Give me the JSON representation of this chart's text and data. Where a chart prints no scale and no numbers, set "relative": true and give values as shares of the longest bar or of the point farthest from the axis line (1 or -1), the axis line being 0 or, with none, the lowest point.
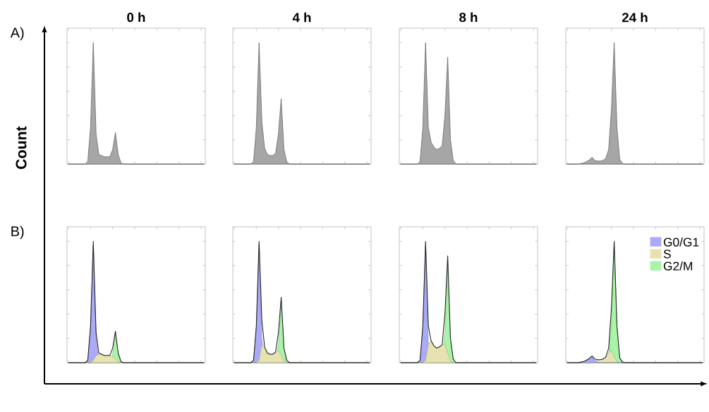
{
  "chart_data": [
    {
      "type": "area",
      "relative": true,
      "title": "0 h",
      "ylabel": "Count",
      "annotations": [
        "A)"
      ],
      "categories": [
        null,
        null,
        null,
        null,
        null,
        null,
        null,
        null,
        null,
        null,
        null,
        null,
        null,
        null,
        null,
        null,
        null,
        null,
        null,
        null,
        null,
        null,
        null,
        null,
        null,
        null,
        null,
        null,
        null,
        null,
        null,
        null,
        null,
        null,
        null,
        null,
        null,
        null,
        null,
        null,
        null,
        null,
        null,
        null,
        null,
        null,
        null,
        null,
        null,
        null
      ],
      "series": [
        {
          "color": "#a6a6a6",
          "values": [
            0,
            0,
            0,
            0,
            0,
            0,
            0,
            0.02,
            0.3,
            1,
            0.25,
            0.08,
            0.07,
            0.06,
            0.06,
            0.06,
            0.12,
            0.26,
            0.08,
            0.01,
            0,
            0,
            0,
            0,
            0,
            0,
            0,
            0,
            0,
            0,
            0,
            0,
            0,
            0,
            0,
            0,
            0,
            0,
            0,
            0,
            0,
            0,
            0,
            0,
            0,
            0,
            0,
            0,
            0,
            0
          ]
        }
      ]
    },
    {
      "type": "area",
      "relative": true,
      "title": "4 h",
      "categories": [
        null,
        null,
        null,
        null,
        null,
        null,
        null,
        null,
        null,
        null,
        null,
        null,
        null,
        null,
        null,
        null,
        null,
        null,
        null,
        null,
        null,
        null,
        null,
        null,
        null,
        null,
        null,
        null,
        null,
        null,
        null,
        null,
        null,
        null,
        null,
        null,
        null,
        null,
        null,
        null,
        null,
        null,
        null,
        null,
        null,
        null,
        null,
        null,
        null,
        null
      ],
      "series": [
        {
          "color": "#a6a6a6",
          "values": [
            0,
            0,
            0,
            0,
            0,
            0,
            0,
            0.02,
            0.3,
            1,
            0.35,
            0.13,
            0.08,
            0.07,
            0.07,
            0.09,
            0.25,
            0.54,
            0.12,
            0.02,
            0,
            0,
            0,
            0,
            0,
            0,
            0,
            0,
            0,
            0,
            0,
            0,
            0,
            0,
            0,
            0,
            0,
            0,
            0,
            0,
            0,
            0,
            0,
            0,
            0,
            0,
            0,
            0,
            0,
            0
          ]
        }
      ]
    },
    {
      "type": "area",
      "relative": true,
      "title": "8 h",
      "categories": [
        null,
        null,
        null,
        null,
        null,
        null,
        null,
        null,
        null,
        null,
        null,
        null,
        null,
        null,
        null,
        null,
        null,
        null,
        null,
        null,
        null,
        null,
        null,
        null,
        null,
        null,
        null,
        null,
        null,
        null,
        null,
        null,
        null,
        null,
        null,
        null,
        null,
        null,
        null,
        null,
        null,
        null,
        null,
        null,
        null,
        null,
        null,
        null,
        null,
        null
      ],
      "series": [
        {
          "color": "#a6a6a6",
          "values": [
            0,
            0,
            0,
            0,
            0,
            0,
            0,
            0.02,
            0.3,
            1,
            0.3,
            0.18,
            0.14,
            0.12,
            0.13,
            0.15,
            0.4,
            0.88,
            0.2,
            0.03,
            0,
            0,
            0,
            0,
            0,
            0,
            0,
            0,
            0,
            0,
            0,
            0,
            0,
            0,
            0,
            0,
            0,
            0,
            0,
            0,
            0,
            0,
            0,
            0,
            0,
            0,
            0,
            0,
            0,
            0
          ]
        }
      ]
    },
    {
      "type": "area",
      "relative": true,
      "title": "24 h",
      "categories": [
        null,
        null,
        null,
        null,
        null,
        null,
        null,
        null,
        null,
        null,
        null,
        null,
        null,
        null,
        null,
        null,
        null,
        null,
        null,
        null,
        null,
        null,
        null,
        null,
        null,
        null,
        null,
        null,
        null,
        null,
        null,
        null,
        null,
        null,
        null,
        null,
        null,
        null,
        null,
        null,
        null,
        null,
        null,
        null,
        null,
        null,
        null,
        null,
        null,
        null
      ],
      "series": [
        {
          "color": "#a6a6a6",
          "values": [
            0,
            0,
            0,
            0,
            0,
            0.005,
            0.01,
            0.02,
            0.035,
            0.056,
            0.03,
            0.025,
            0.025,
            0.03,
            0.05,
            0.12,
            0.45,
            1,
            0.3,
            0.04,
            0.005,
            0,
            0,
            0,
            0,
            0,
            0,
            0,
            0,
            0,
            0,
            0,
            0,
            0,
            0,
            0,
            0,
            0,
            0,
            0,
            0,
            0,
            0,
            0,
            0,
            0,
            0,
            0,
            0,
            0
          ]
        }
      ]
    },
    {
      "type": "area",
      "relative": true,
      "annotations": [
        "B)"
      ],
      "categories": [
        null,
        null,
        null,
        null,
        null,
        null,
        null,
        null,
        null,
        null,
        null,
        null,
        null,
        null,
        null,
        null,
        null,
        null,
        null,
        null,
        null,
        null,
        null,
        null,
        null,
        null,
        null,
        null,
        null,
        null,
        null,
        null,
        null,
        null,
        null,
        null,
        null,
        null,
        null,
        null,
        null,
        null,
        null,
        null,
        null,
        null,
        null,
        null,
        null,
        null
      ],
      "series": [
        {
          "color": "#e6e3b0",
          "values": [
            0,
            0,
            0,
            0,
            0,
            0,
            0,
            0,
            0,
            0.02,
            0.06,
            0.07,
            0.07,
            0.06,
            0.06,
            0.06,
            0.05,
            0.03,
            0.01,
            0,
            0,
            0,
            0,
            0,
            0,
            0,
            0,
            0,
            0,
            0,
            0,
            0,
            0,
            0,
            0,
            0,
            0,
            0,
            0,
            0,
            0,
            0,
            0,
            0,
            0,
            0,
            0,
            0,
            0,
            0
          ]
        },
        {
          "color": "#aaaaf8",
          "values": [
            0,
            0,
            0,
            0,
            0,
            0,
            0,
            0.015,
            0.28,
            0.97,
            0.2,
            0.01,
            0,
            0,
            0,
            0,
            0,
            0,
            0,
            0,
            0,
            0,
            0,
            0,
            0,
            0,
            0,
            0,
            0,
            0,
            0,
            0,
            0,
            0,
            0,
            0,
            0,
            0,
            0,
            0,
            0,
            0,
            0,
            0,
            0,
            0,
            0,
            0,
            0,
            0
          ]
        },
        {
          "color": "#a8f5a8",
          "values": [
            0,
            0,
            0,
            0,
            0,
            0,
            0,
            0,
            0,
            0,
            0,
            0,
            0,
            0,
            0,
            0,
            0.07,
            0.25,
            0.07,
            0.01,
            0,
            0,
            0,
            0,
            0,
            0,
            0,
            0,
            0,
            0,
            0,
            0,
            0,
            0,
            0,
            0,
            0,
            0,
            0,
            0,
            0,
            0,
            0,
            0,
            0,
            0,
            0,
            0,
            0,
            0
          ]
        },
        {
          "type": "line",
          "color": "#222222",
          "values": [
            0,
            0,
            0,
            0,
            0,
            0,
            0,
            0.02,
            0.3,
            1,
            0.25,
            0.08,
            0.07,
            0.06,
            0.06,
            0.06,
            0.12,
            0.26,
            0.08,
            0.01,
            0,
            0,
            0,
            0,
            0,
            0,
            0,
            0,
            0,
            0,
            0,
            0,
            0,
            0,
            0,
            0,
            0,
            0,
            0,
            0,
            0,
            0,
            0,
            0,
            0,
            0,
            0,
            0,
            0,
            0
          ]
        }
      ]
    },
    {
      "type": "area",
      "relative": true,
      "categories": [
        null,
        null,
        null,
        null,
        null,
        null,
        null,
        null,
        null,
        null,
        null,
        null,
        null,
        null,
        null,
        null,
        null,
        null,
        null,
        null,
        null,
        null,
        null,
        null,
        null,
        null,
        null,
        null,
        null,
        null,
        null,
        null,
        null,
        null,
        null,
        null,
        null,
        null,
        null,
        null,
        null,
        null,
        null,
        null,
        null,
        null,
        null,
        null,
        null,
        null
      ],
      "series": [
        {
          "color": "#e6e3b0",
          "values": [
            0,
            0,
            0,
            0,
            0,
            0,
            0,
            0,
            0,
            0.02,
            0.15,
            0.12,
            0.08,
            0.07,
            0.07,
            0.08,
            0.1,
            0.06,
            0.01,
            0,
            0,
            0,
            0,
            0,
            0,
            0,
            0,
            0,
            0,
            0,
            0,
            0,
            0,
            0,
            0,
            0,
            0,
            0,
            0,
            0,
            0,
            0,
            0,
            0,
            0,
            0,
            0,
            0,
            0,
            0
          ]
        },
        {
          "color": "#aaaaf8",
          "values": [
            0,
            0,
            0,
            0,
            0,
            0,
            0,
            0.015,
            0.28,
            0.97,
            0.2,
            0.01,
            0,
            0,
            0,
            0,
            0,
            0,
            0,
            0,
            0,
            0,
            0,
            0,
            0,
            0,
            0,
            0,
            0,
            0,
            0,
            0,
            0,
            0,
            0,
            0,
            0,
            0,
            0,
            0,
            0,
            0,
            0,
            0,
            0,
            0,
            0,
            0,
            0,
            0
          ]
        },
        {
          "color": "#a8f5a8",
          "values": [
            0,
            0,
            0,
            0,
            0,
            0,
            0,
            0,
            0,
            0,
            0,
            0,
            0,
            0,
            0,
            0,
            0.15,
            0.5,
            0.11,
            0.02,
            0,
            0,
            0,
            0,
            0,
            0,
            0,
            0,
            0,
            0,
            0,
            0,
            0,
            0,
            0,
            0,
            0,
            0,
            0,
            0,
            0,
            0,
            0,
            0,
            0,
            0,
            0,
            0,
            0,
            0
          ]
        },
        {
          "type": "line",
          "color": "#222222",
          "values": [
            0,
            0,
            0,
            0,
            0,
            0,
            0,
            0.02,
            0.3,
            1,
            0.35,
            0.13,
            0.08,
            0.07,
            0.07,
            0.09,
            0.25,
            0.54,
            0.12,
            0.02,
            0,
            0,
            0,
            0,
            0,
            0,
            0,
            0,
            0,
            0,
            0,
            0,
            0,
            0,
            0,
            0,
            0,
            0,
            0,
            0,
            0,
            0,
            0,
            0,
            0,
            0,
            0,
            0,
            0,
            0
          ]
        }
      ]
    },
    {
      "type": "area",
      "relative": true,
      "categories": [
        null,
        null,
        null,
        null,
        null,
        null,
        null,
        null,
        null,
        null,
        null,
        null,
        null,
        null,
        null,
        null,
        null,
        null,
        null,
        null,
        null,
        null,
        null,
        null,
        null,
        null,
        null,
        null,
        null,
        null,
        null,
        null,
        null,
        null,
        null,
        null,
        null,
        null,
        null,
        null,
        null,
        null,
        null,
        null,
        null,
        null,
        null,
        null,
        null,
        null
      ],
      "series": [
        {
          "color": "#e6e3b0",
          "values": [
            0,
            0,
            0,
            0,
            0,
            0,
            0,
            0,
            0,
            0.02,
            0.15,
            0.18,
            0.14,
            0.12,
            0.13,
            0.14,
            0.15,
            0.08,
            0.01,
            0,
            0,
            0,
            0,
            0,
            0,
            0,
            0,
            0,
            0,
            0,
            0,
            0,
            0,
            0,
            0,
            0,
            0,
            0,
            0,
            0,
            0,
            0,
            0,
            0,
            0,
            0,
            0,
            0,
            0,
            0
          ]
        },
        {
          "color": "#aaaaf8",
          "values": [
            0,
            0,
            0,
            0,
            0,
            0,
            0,
            0.015,
            0.28,
            0.97,
            0.15,
            0,
            0,
            0,
            0,
            0,
            0,
            0,
            0,
            0,
            0,
            0,
            0,
            0,
            0,
            0,
            0,
            0,
            0,
            0,
            0,
            0,
            0,
            0,
            0,
            0,
            0,
            0,
            0,
            0,
            0,
            0,
            0,
            0,
            0,
            0,
            0,
            0,
            0,
            0
          ]
        },
        {
          "color": "#a8f5a8",
          "values": [
            0,
            0,
            0,
            0,
            0,
            0,
            0,
            0,
            0,
            0,
            0,
            0,
            0,
            0,
            0,
            0,
            0.25,
            0.8,
            0.19,
            0.03,
            0,
            0,
            0,
            0,
            0,
            0,
            0,
            0,
            0,
            0,
            0,
            0,
            0,
            0,
            0,
            0,
            0,
            0,
            0,
            0,
            0,
            0,
            0,
            0,
            0,
            0,
            0,
            0,
            0,
            0
          ]
        },
        {
          "type": "line",
          "color": "#222222",
          "values": [
            0,
            0,
            0,
            0,
            0,
            0,
            0,
            0.02,
            0.3,
            1,
            0.3,
            0.18,
            0.14,
            0.12,
            0.13,
            0.15,
            0.4,
            0.88,
            0.2,
            0.03,
            0,
            0,
            0,
            0,
            0,
            0,
            0,
            0,
            0,
            0,
            0,
            0,
            0,
            0,
            0,
            0,
            0,
            0,
            0,
            0,
            0,
            0,
            0,
            0,
            0,
            0,
            0,
            0,
            0,
            0
          ]
        }
      ]
    },
    {
      "type": "area",
      "relative": true,
      "legend": "top right",
      "categories": [
        null,
        null,
        null,
        null,
        null,
        null,
        null,
        null,
        null,
        null,
        null,
        null,
        null,
        null,
        null,
        null,
        null,
        null,
        null,
        null,
        null,
        null,
        null,
        null,
        null,
        null,
        null,
        null,
        null,
        null,
        null,
        null,
        null,
        null,
        null,
        null,
        null,
        null,
        null,
        null,
        null,
        null,
        null,
        null,
        null,
        null,
        null,
        null,
        null,
        null
      ],
      "series": [
        {
          "name": "G0/G1",
          "color": "#aaaaf8",
          "values": [
            0,
            0,
            0,
            0,
            0,
            0,
            0.01,
            0.02,
            0.035,
            0.05,
            0.02,
            0.005,
            0,
            0,
            0,
            0,
            0,
            0,
            0,
            0,
            0,
            0,
            0,
            0,
            0,
            0,
            0,
            0,
            0,
            0,
            0,
            0,
            0,
            0,
            0,
            0,
            0,
            0,
            0,
            0,
            0,
            0,
            0,
            0,
            0,
            0,
            0,
            0,
            0,
            0
          ]
        },
        {
          "name": "S",
          "color": "#e6e3b0",
          "values": [
            0,
            0,
            0,
            0,
            0,
            0,
            0,
            0,
            0,
            0.005,
            0.015,
            0.02,
            0.025,
            0.03,
            0.04,
            0.08,
            0.1,
            0.05,
            0.01,
            0,
            0,
            0,
            0,
            0,
            0,
            0,
            0,
            0,
            0,
            0,
            0,
            0,
            0,
            0,
            0,
            0,
            0,
            0,
            0,
            0,
            0,
            0,
            0,
            0,
            0,
            0,
            0,
            0,
            0,
            0
          ]
        },
        {
          "name": "G2/M",
          "color": "#a8f5a8",
          "values": [
            0,
            0,
            0,
            0,
            0,
            0,
            0,
            0,
            0,
            0,
            0,
            0,
            0,
            0,
            0,
            0.04,
            0.35,
            0.98,
            0.29,
            0.04,
            0,
            0,
            0,
            0,
            0,
            0,
            0,
            0,
            0,
            0,
            0,
            0,
            0,
            0,
            0,
            0,
            0,
            0,
            0,
            0,
            0,
            0,
            0,
            0,
            0,
            0,
            0,
            0,
            0,
            0
          ]
        },
        {
          "type": "line",
          "color": "#222222",
          "values": [
            0,
            0,
            0,
            0,
            0,
            0.005,
            0.01,
            0.02,
            0.035,
            0.056,
            0.03,
            0.025,
            0.025,
            0.03,
            0.05,
            0.12,
            0.45,
            1,
            0.3,
            0.04,
            0.005,
            0,
            0,
            0,
            0,
            0,
            0,
            0,
            0,
            0,
            0,
            0,
            0,
            0,
            0,
            0,
            0,
            0,
            0,
            0,
            0,
            0,
            0,
            0,
            0,
            0,
            0,
            0,
            0,
            0
          ]
        }
      ]
    }
  ]
}
